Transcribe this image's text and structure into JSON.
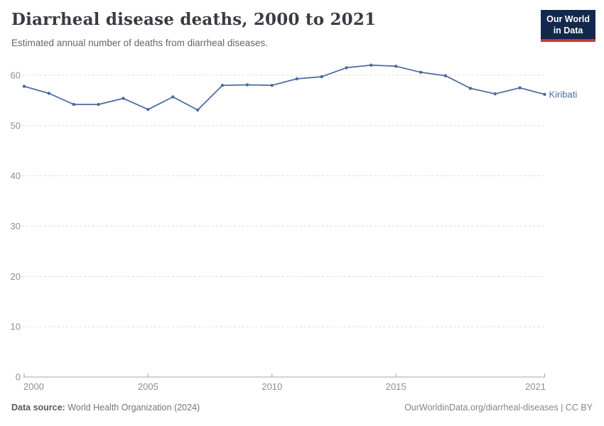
{
  "header": {
    "title": "Diarrheal disease deaths, 2000 to 2021",
    "subtitle": "Estimated annual number of deaths from diarrheal diseases."
  },
  "logo": {
    "line1": "Our World",
    "line2": "in Data",
    "bg_color": "#12294d",
    "accent_color": "#d13239"
  },
  "chart_data": {
    "type": "line",
    "title": "Diarrheal disease deaths, 2000 to 2021",
    "x": [
      2000,
      2001,
      2002,
      2003,
      2004,
      2005,
      2006,
      2007,
      2008,
      2009,
      2010,
      2011,
      2012,
      2013,
      2014,
      2015,
      2016,
      2017,
      2018,
      2019,
      2020,
      2021
    ],
    "series": [
      {
        "name": "Kiribati",
        "color": "#4c6a9f",
        "values": [
          57.8,
          56.4,
          54.2,
          54.2,
          55.4,
          53.2,
          55.7,
          53.1,
          58.0,
          58.1,
          58.0,
          59.3,
          59.7,
          61.5,
          62.0,
          61.8,
          60.6,
          59.9,
          57.4,
          56.3,
          57.5,
          56.2
        ]
      }
    ],
    "x_ticks": [
      2000,
      2005,
      2010,
      2015,
      2021
    ],
    "y_ticks": [
      0,
      10,
      20,
      30,
      40,
      50,
      60
    ],
    "ylim": [
      0,
      64
    ],
    "grid": true,
    "grid_style": "dashed",
    "grid_color": "#d9d9d9",
    "axis_color": "#a6a6a6",
    "tick_label_color": "#8e8e8e",
    "legend": "end-of-line-label"
  },
  "footer": {
    "source_label": "Data source:",
    "source_text": "World Health Organization (2024)",
    "attribution": "OurWorldinData.org/diarrheal-diseases | CC BY"
  }
}
